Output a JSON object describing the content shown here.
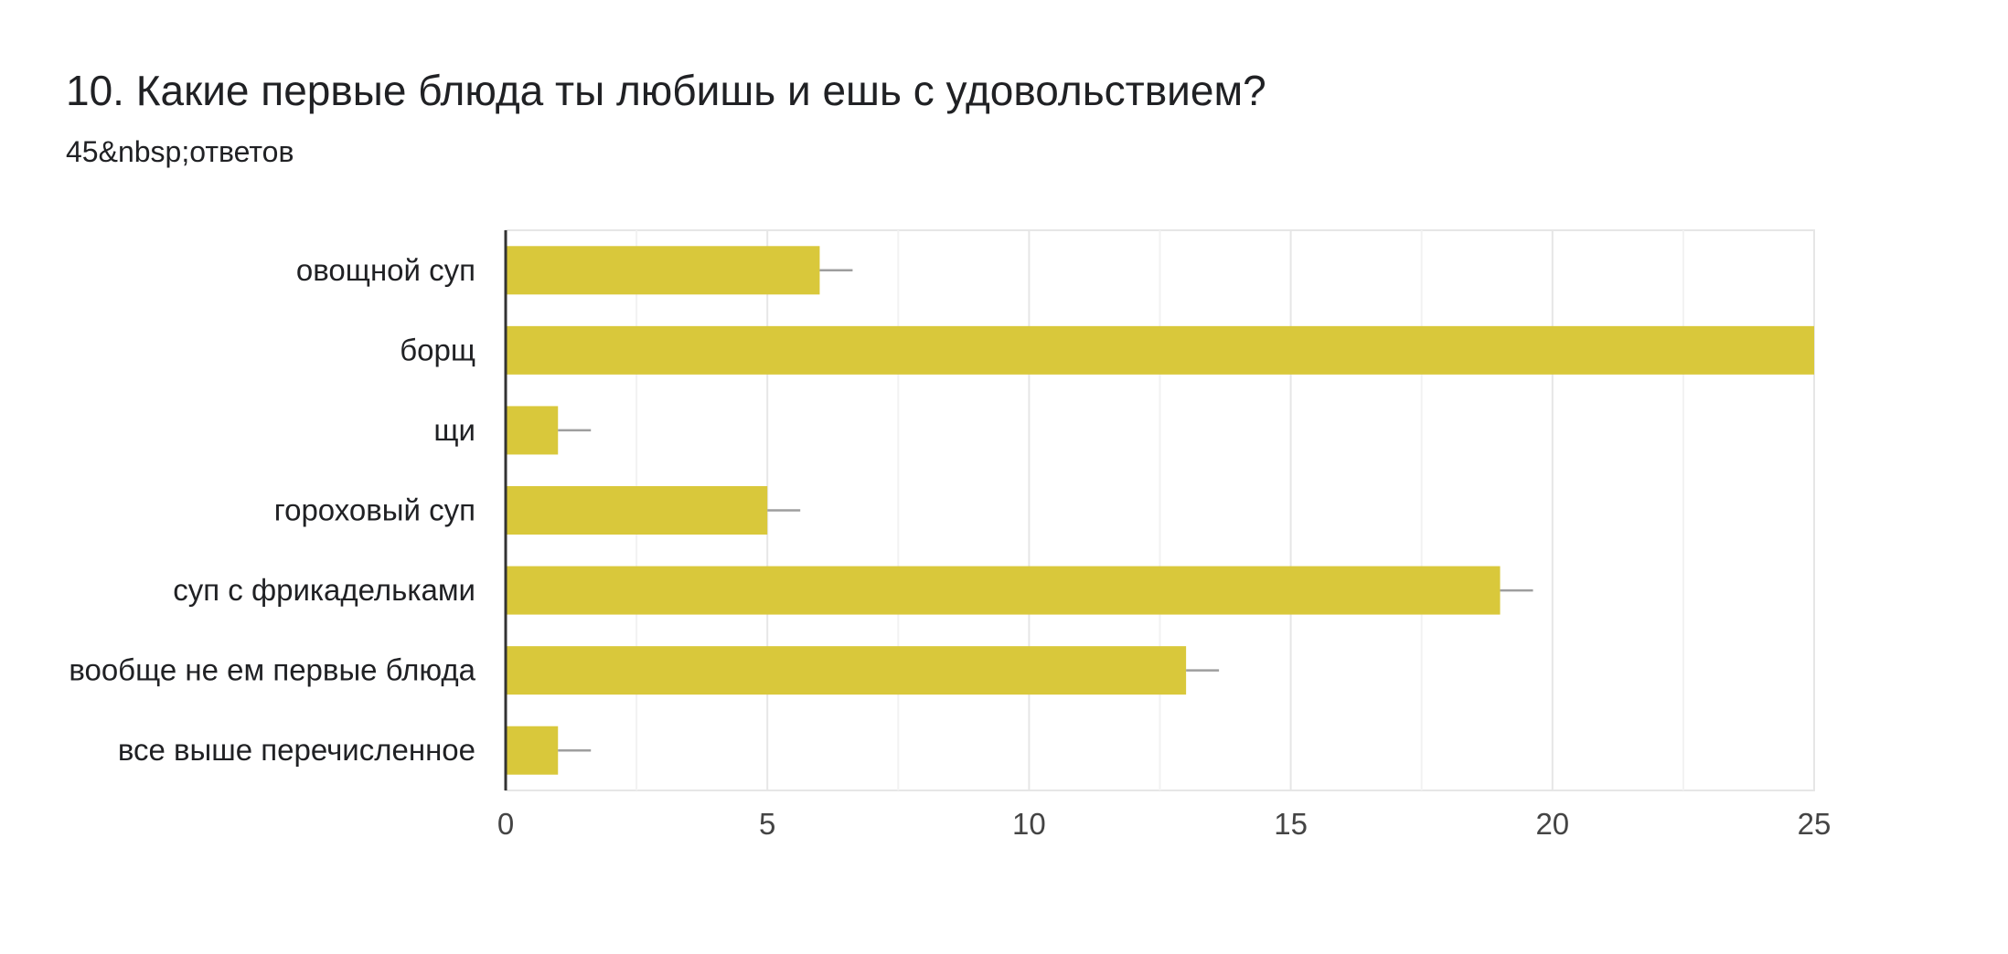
{
  "question": {
    "title": "10. Какие первые блюда ты любишь и ешь с удовольствием?",
    "responses": "45&nbsp;ответов"
  },
  "chart_data": {
    "type": "bar",
    "orientation": "horizontal",
    "categories": [
      "овощной суп",
      "борщ",
      "щи",
      "гороховый суп",
      "суп с фрикадельками",
      "вообще не ем первые блюда",
      "все выше перечисленное"
    ],
    "values": [
      6,
      25,
      1,
      5,
      19,
      13,
      1
    ],
    "xlim": [
      0,
      25
    ],
    "xticks": [
      0,
      5,
      10,
      15,
      20,
      25
    ],
    "grid": true,
    "bar_color": "#d9c83b",
    "error_bars": true
  }
}
